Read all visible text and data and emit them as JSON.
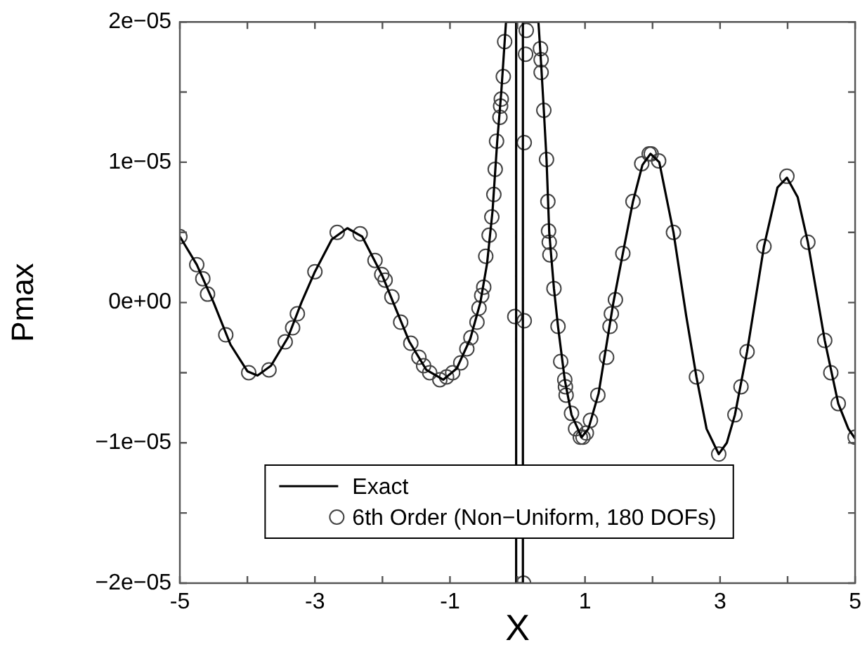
{
  "chart_data": {
    "type": "line",
    "xlabel": "X",
    "ylabel": "Pmax",
    "legend": "bottom",
    "grid": false,
    "xlim": [
      -5,
      5
    ],
    "ylim": [
      -2e-05,
      2e-05
    ],
    "xticks": [
      -5,
      {
        "value": -4,
        "label": null
      },
      -3,
      {
        "value": -2,
        "label": null
      },
      -1,
      {
        "value": 0,
        "label": null
      },
      1,
      {
        "value": 2,
        "label": null
      },
      3,
      {
        "value": 4,
        "label": null
      },
      5
    ],
    "yticks": [
      {
        "value": -2e-05,
        "label": "−2e−05"
      },
      {
        "value": -1.5e-05,
        "label": null
      },
      {
        "value": -1e-05,
        "label": "−1e−05"
      },
      {
        "value": -5e-06,
        "label": null
      },
      {
        "value": 0,
        "label": "0e+00"
      },
      {
        "value": 5e-06,
        "label": null
      },
      {
        "value": 1e-05,
        "label": "1e−05"
      },
      {
        "value": 1.5e-05,
        "label": null
      },
      {
        "value": 2e-05,
        "label": "2e−05"
      }
    ],
    "series": [
      {
        "name": "Exact",
        "marker": "none",
        "line_style": "solid",
        "color": "#000000",
        "x": [
          -5,
          -4.75,
          -4.5,
          -4.25,
          -4.0,
          -3.85,
          -3.65,
          -3.4,
          -3.2,
          -3.0,
          -2.75,
          -2.52,
          -2.3,
          -2.0,
          -1.84,
          -1.6,
          -1.35,
          -1.1,
          -0.9,
          -0.7,
          -0.55,
          -0.45,
          -0.37,
          -0.3,
          -0.24,
          -0.19,
          -0.17,
          -0.02,
          -0.02,
          0.08,
          0.08,
          0.31,
          0.35,
          0.39,
          0.43,
          0.47,
          0.54,
          0.6,
          0.7,
          0.8,
          0.95,
          1.05,
          1.2,
          1.42,
          1.56,
          1.71,
          1.85,
          1.97,
          2.1,
          2.31,
          2.5,
          2.65,
          2.8,
          2.98,
          3.1,
          3.22,
          3.4,
          3.65,
          3.85,
          3.99,
          4.15,
          4.3,
          4.55,
          4.75,
          4.9,
          5.0
        ],
        "values": [
          4.7e-06,
          2.7e-06,
          0,
          -3e-06,
          -4.9e-06,
          -5.2e-06,
          -4.5e-06,
          -2.5e-06,
          0,
          2.2e-06,
          4.5e-06,
          5.3e-06,
          4.7e-06,
          1.9e-06,
          0,
          -2.8e-06,
          -4.8e-06,
          -5.5e-06,
          -4.7e-06,
          -2.6e-06,
          0,
          2.8e-06,
          6.5e-06,
          1.15e-05,
          1.5e-05,
          1.86e-05,
          2e-05,
          2e-05,
          -2e-05,
          -2e-05,
          2e-05,
          2e-05,
          1.7e-05,
          1.37e-05,
          1.02e-05,
          5e-06,
          1e-06,
          -1.7e-06,
          -5.5e-06,
          -8e-06,
          -9.6e-06,
          -9e-06,
          -6.5e-06,
          0,
          3.5e-06,
          7.2e-06,
          9.8e-06,
          1.06e-05,
          1e-05,
          5e-06,
          -1e-06,
          -5.3e-06,
          -9e-06,
          -1.08e-05,
          -1e-05,
          -8e-06,
          -3.5e-06,
          4e-06,
          8.2e-06,
          8.9e-06,
          7.5e-06,
          4.3e-06,
          -2.7e-06,
          -7.2e-06,
          -9e-06,
          -9.7e-06
        ]
      },
      {
        "name": "6th Order (Non−Uniform, 180 DOFs)",
        "type": "scatter",
        "marker": "circle",
        "color": "#444444",
        "x": [
          -5.0,
          -4.75,
          -4.66,
          -4.59,
          -4.32,
          -3.98,
          -3.68,
          -3.44,
          -3.33,
          -3.26,
          -3.0,
          -2.67,
          -2.33,
          -2.11,
          -2.01,
          -1.96,
          -1.86,
          -1.73,
          -1.58,
          -1.46,
          -1.39,
          -1.3,
          -1.15,
          -1.05,
          -0.96,
          -0.84,
          -0.75,
          -0.69,
          -0.6,
          -0.57,
          -0.53,
          -0.5,
          -0.47,
          -0.42,
          -0.38,
          -0.35,
          -0.33,
          -0.31,
          -0.26,
          -0.25,
          -0.24,
          -0.21,
          -0.19,
          -0.04,
          0.1,
          0.1,
          0.12,
          0.13,
          0.09,
          0.34,
          0.35,
          0.35,
          0.39,
          0.43,
          0.45,
          0.46,
          0.47,
          0.48,
          0.54,
          0.6,
          0.64,
          0.7,
          0.71,
          0.72,
          0.8,
          0.86,
          0.93,
          0.97,
          1.02,
          1.08,
          1.19,
          1.32,
          1.37,
          1.39,
          1.45,
          1.56,
          1.71,
          1.84,
          1.95,
          1.98,
          2.09,
          2.31,
          2.65,
          2.98,
          3.22,
          3.31,
          3.4,
          3.65,
          3.99,
          4.3,
          4.55,
          4.64,
          4.75,
          5.0
        ],
        "values": [
          4.7e-06,
          2.7e-06,
          1.7e-06,
          6e-07,
          -2.3e-06,
          -5e-06,
          -4.8e-06,
          -2.8e-06,
          -1.8e-06,
          -8e-07,
          2.2e-06,
          5e-06,
          4.9e-06,
          3e-06,
          2e-06,
          1.6e-06,
          4e-07,
          -1.4e-06,
          -2.9e-06,
          -3.9e-06,
          -4.5e-06,
          -5e-06,
          -5.5e-06,
          -5.3e-06,
          -5e-06,
          -4.3e-06,
          -3.3e-06,
          -2.5e-06,
          -1.4e-06,
          -4e-07,
          5e-07,
          1.1e-06,
          3.3e-06,
          4.8e-06,
          6.1e-06,
          7.7e-06,
          9.5e-06,
          1.15e-05,
          1.32e-05,
          1.4e-05,
          1.45e-05,
          1.61e-05,
          1.86e-05,
          -1e-06,
          -1.3e-06,
          1.14e-05,
          1.77e-05,
          1.94e-05,
          -2e-05,
          1.81e-05,
          1.73e-05,
          1.64e-05,
          1.37e-05,
          1.02e-05,
          7.2e-06,
          5.1e-06,
          4.3e-06,
          3.4e-06,
          1e-06,
          -1.7e-06,
          -4.2e-06,
          -5.5e-06,
          -6e-06,
          -6.6e-06,
          -7.9e-06,
          -9e-06,
          -9.6e-06,
          -9.6e-06,
          -9.3e-06,
          -8.4e-06,
          -6.6e-06,
          -3.9e-06,
          -1.7e-06,
          -8e-07,
          2e-07,
          3.5e-06,
          7.2e-06,
          9.9e-06,
          1.06e-05,
          1.06e-05,
          1.01e-05,
          5e-06,
          -5.3e-06,
          -1.08e-05,
          -8e-06,
          -6e-06,
          -3.5e-06,
          4e-06,
          9e-06,
          4.3e-06,
          -2.7e-06,
          -5e-06,
          -7.2e-06,
          -9.6e-06
        ]
      }
    ]
  }
}
